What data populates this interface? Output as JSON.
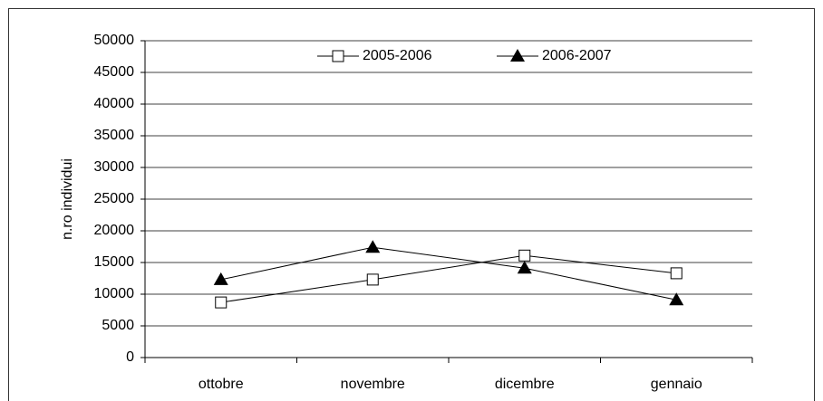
{
  "chart_data": {
    "type": "line",
    "y_label": "n.ro individui",
    "categories": [
      "ottobre",
      "novembre",
      "dicembre",
      "gennaio"
    ],
    "series": [
      {
        "name": "2005-2006",
        "color": "#000000",
        "marker": "square",
        "values": [
          8700,
          12300,
          16100,
          13300
        ]
      },
      {
        "name": "2006-2007",
        "color": "#000000",
        "marker": "triangle",
        "values": [
          12300,
          17400,
          14100,
          9100
        ]
      }
    ],
    "ylim": [
      0,
      50000
    ],
    "yticks": [
      0,
      5000,
      10000,
      15000,
      20000,
      25000,
      30000,
      35000,
      40000,
      45000,
      50000
    ],
    "grid": true
  }
}
